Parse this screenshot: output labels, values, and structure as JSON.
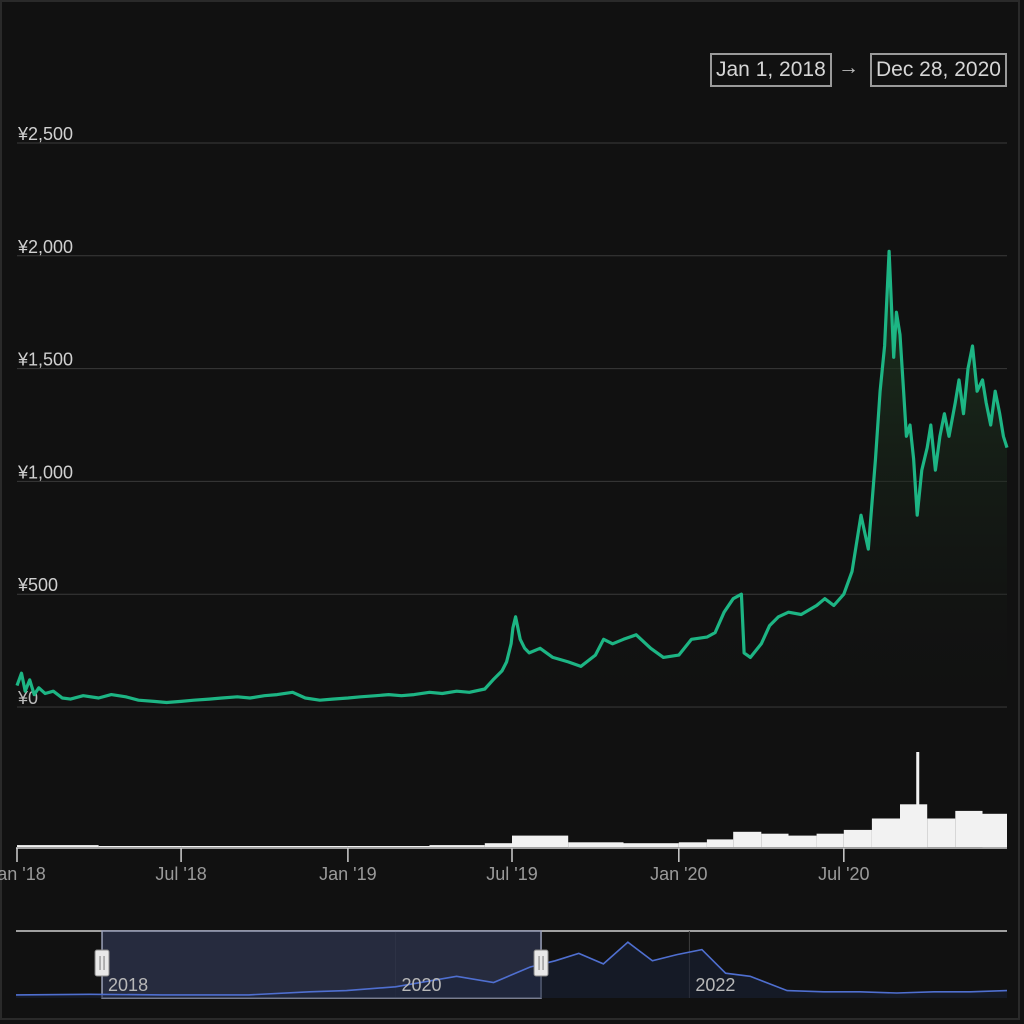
{
  "date_range": {
    "start": "Jan 1, 2018",
    "arrow": "→",
    "end": "Dec 28, 2020"
  },
  "colors": {
    "background": "#111111",
    "price_line": "#1db584",
    "area_top": "#1f3b22",
    "volume": "#f2f2f2",
    "gridline": "#3a3a3a",
    "navigator_line": "#4f6fd0",
    "navigator_selection": "#2a3047"
  },
  "chart_data": [
    {
      "type": "line",
      "title": "",
      "xlabel": "",
      "ylabel": "",
      "x_range": [
        "2018-01-01",
        "2020-12-28"
      ],
      "ylim": [
        0,
        2500
      ],
      "y_tick_labels": [
        "¥0",
        "¥500",
        "¥1,000",
        "¥1,500",
        "¥2,000",
        "¥2,500"
      ],
      "y_tick_values": [
        0,
        500,
        1000,
        1500,
        2000,
        2500
      ],
      "x_tick_labels": [
        "Jan '18",
        "Jul '18",
        "Jan '19",
        "Jul '19",
        "Jan '20",
        "Jul '20"
      ],
      "x_tick_dates": [
        "2018-01-01",
        "2018-07-01",
        "2019-01-01",
        "2019-07-01",
        "2020-01-01",
        "2020-07-01"
      ],
      "grid": true,
      "series": [
        {
          "x": [
            "2018-01-01",
            "2018-01-06",
            "2018-01-10",
            "2018-01-15",
            "2018-01-20",
            "2018-01-25",
            "2018-02-01",
            "2018-02-10",
            "2018-02-20",
            "2018-03-01",
            "2018-03-15",
            "2018-04-01",
            "2018-04-15",
            "2018-05-01",
            "2018-05-15",
            "2018-06-01",
            "2018-06-15",
            "2018-07-01",
            "2018-07-15",
            "2018-08-01",
            "2018-08-15",
            "2018-09-01",
            "2018-09-15",
            "2018-10-01",
            "2018-10-15",
            "2018-11-01",
            "2018-11-15",
            "2018-12-01",
            "2018-12-15",
            "2019-01-01",
            "2019-01-15",
            "2019-02-01",
            "2019-02-15",
            "2019-03-01",
            "2019-03-15",
            "2019-04-01",
            "2019-04-15",
            "2019-05-01",
            "2019-05-15",
            "2019-06-01",
            "2019-06-10",
            "2019-06-20",
            "2019-06-25",
            "2019-06-30",
            "2019-07-02",
            "2019-07-05",
            "2019-07-10",
            "2019-07-15",
            "2019-07-20",
            "2019-08-01",
            "2019-08-15",
            "2019-09-01",
            "2019-09-15",
            "2019-10-01",
            "2019-10-10",
            "2019-10-20",
            "2019-11-01",
            "2019-11-15",
            "2019-12-01",
            "2019-12-15",
            "2020-01-01",
            "2020-01-15",
            "2020-02-01",
            "2020-02-10",
            "2020-02-20",
            "2020-03-01",
            "2020-03-10",
            "2020-03-13",
            "2020-03-20",
            "2020-04-01",
            "2020-04-10",
            "2020-04-20",
            "2020-05-01",
            "2020-05-15",
            "2020-06-01",
            "2020-06-10",
            "2020-06-20",
            "2020-07-01",
            "2020-07-10",
            "2020-07-20",
            "2020-07-28",
            "2020-08-05",
            "2020-08-10",
            "2020-08-15",
            "2020-08-20",
            "2020-08-25",
            "2020-08-28",
            "2020-09-01",
            "2020-09-05",
            "2020-09-08",
            "2020-09-12",
            "2020-09-16",
            "2020-09-20",
            "2020-09-25",
            "2020-10-01",
            "2020-10-05",
            "2020-10-10",
            "2020-10-15",
            "2020-10-20",
            "2020-10-25",
            "2020-11-01",
            "2020-11-05",
            "2020-11-10",
            "2020-11-15",
            "2020-11-20",
            "2020-11-25",
            "2020-12-01",
            "2020-12-05",
            "2020-12-10",
            "2020-12-15",
            "2020-12-20",
            "2020-12-24",
            "2020-12-28"
          ],
          "values": [
            95,
            150,
            70,
            120,
            55,
            85,
            60,
            70,
            40,
            35,
            50,
            40,
            55,
            45,
            30,
            25,
            20,
            25,
            30,
            35,
            40,
            45,
            40,
            50,
            55,
            65,
            40,
            30,
            35,
            40,
            45,
            50,
            55,
            50,
            55,
            65,
            60,
            70,
            65,
            80,
            120,
            160,
            200,
            280,
            350,
            400,
            300,
            260,
            240,
            260,
            220,
            200,
            180,
            230,
            300,
            280,
            300,
            320,
            260,
            220,
            230,
            300,
            310,
            330,
            420,
            480,
            500,
            240,
            220,
            280,
            360,
            400,
            420,
            410,
            450,
            480,
            450,
            500,
            600,
            850,
            700,
            1100,
            1400,
            1600,
            2020,
            1550,
            1750,
            1650,
            1400,
            1200,
            1250,
            1100,
            850,
            1050,
            1150,
            1250,
            1050,
            1200,
            1300,
            1200,
            1350,
            1450,
            1300,
            1500,
            1600,
            1400,
            1450,
            1350,
            1250,
            1400,
            1300,
            1200,
            1150
          ]
        }
      ]
    },
    {
      "type": "bar",
      "title": "",
      "note": "volume pane beneath price chart (no axis labels shown)",
      "x": [
        "2018-01",
        "2018-04",
        "2018-07",
        "2018-10",
        "2019-01",
        "2019-04",
        "2019-06",
        "2019-07",
        "2019-09",
        "2019-11",
        "2020-01",
        "2020-02",
        "2020-03",
        "2020-04",
        "2020-05",
        "2020-06",
        "2020-07",
        "2020-08",
        "2020-09",
        "2020-10",
        "2020-11",
        "2020-12"
      ],
      "values": [
        2,
        1,
        1,
        1,
        1,
        2,
        4,
        12,
        5,
        4,
        5,
        8,
        16,
        14,
        12,
        14,
        18,
        30,
        45,
        30,
        38,
        35
      ],
      "spike": {
        "x": "2020-09-20",
        "value": 100
      }
    },
    {
      "type": "area",
      "title": "",
      "note": "navigator overview with selected window 2018–2020",
      "x_tick_labels": [
        "2018",
        "2020",
        "2022"
      ],
      "selection": [
        "2018-01-01",
        "2020-12-28"
      ],
      "x": [
        "2017-06",
        "2017-12",
        "2018-06",
        "2019-01",
        "2019-06",
        "2019-09",
        "2020-01",
        "2020-06",
        "2020-09",
        "2020-12",
        "2021-02",
        "2021-04",
        "2021-06",
        "2021-08",
        "2021-10",
        "2021-12",
        "2022-02",
        "2022-04",
        "2022-06",
        "2022-09",
        "2022-12",
        "2023-03",
        "2023-06",
        "2023-09",
        "2023-12",
        "2024-03"
      ],
      "values": [
        0.05,
        0.06,
        0.05,
        0.05,
        0.1,
        0.12,
        0.18,
        0.35,
        0.25,
        0.5,
        0.6,
        0.72,
        0.55,
        0.9,
        0.6,
        0.7,
        0.78,
        0.4,
        0.35,
        0.12,
        0.1,
        0.1,
        0.08,
        0.1,
        0.1,
        0.12
      ]
    }
  ]
}
